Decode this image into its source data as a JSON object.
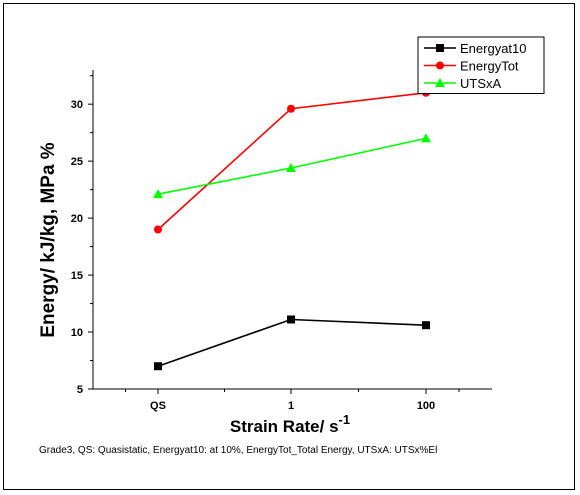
{
  "chart_data": {
    "type": "line",
    "categories": [
      "QS",
      "1",
      "100"
    ],
    "series": [
      {
        "name": "Energyat10",
        "values": [
          7.0,
          11.1,
          10.6
        ],
        "color": "#000000",
        "marker": "square"
      },
      {
        "name": "EnergyTot",
        "values": [
          19.0,
          29.6,
          31.0
        ],
        "color": "#ff0000",
        "marker": "circle"
      },
      {
        "name": "UTSxA",
        "values": [
          22.1,
          24.4,
          27.0
        ],
        "color": "#00ff00",
        "marker": "triangle"
      }
    ],
    "xlabel": "Strain Rate/ s",
    "xlabel_superscript": "-1",
    "ylabel": "Energy/ kJ/kg, MPa %",
    "ylim": [
      5,
      33
    ],
    "yticks": [
      5,
      10,
      15,
      20,
      25,
      30
    ],
    "grid": false,
    "legend_position": "top-right",
    "caption": "Grade3, QS: Quasistatic, Energyat10: at 10%, EnergyTot_Total Energy, UTSxA: UTSx%El"
  }
}
